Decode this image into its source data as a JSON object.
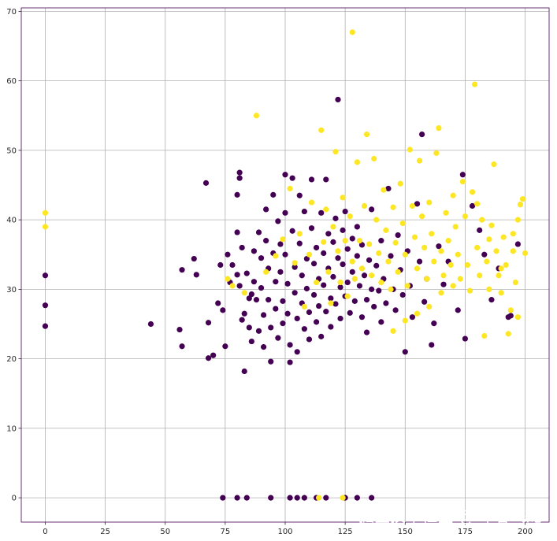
{
  "chart_data": {
    "type": "scatter",
    "title": "",
    "xlabel": "",
    "ylabel": "",
    "xlim": [
      -10,
      210
    ],
    "ylim": [
      -3.5,
      70.5
    ],
    "x_ticks": [
      0,
      25,
      50,
      75,
      100,
      125,
      150,
      175,
      200
    ],
    "y_ticks": [
      0,
      10,
      20,
      30,
      40,
      50,
      60,
      70
    ],
    "grid": true,
    "colors": {
      "class_0": "#440154",
      "class_1": "#fde725",
      "grid": "#b0b0b0",
      "frame": "#440154"
    },
    "series": [
      {
        "values": [
          [
            0,
            32.0
          ],
          [
            0,
            27.7
          ],
          [
            0,
            24.7
          ],
          [
            44,
            25.0
          ],
          [
            56,
            24.2
          ],
          [
            57,
            21.8
          ],
          [
            57,
            32.8
          ],
          [
            62,
            34.4
          ],
          [
            63,
            32.1
          ],
          [
            67,
            45.3
          ],
          [
            68,
            25.2
          ],
          [
            68,
            20.1
          ],
          [
            70,
            20.5
          ],
          [
            72,
            28.0
          ],
          [
            73,
            33.5
          ],
          [
            74,
            27.0
          ],
          [
            75,
            21.8
          ],
          [
            76,
            35.0
          ],
          [
            77,
            31.0
          ],
          [
            78,
            33.5
          ],
          [
            80,
            43.6
          ],
          [
            80,
            38.2
          ],
          [
            80,
            32.1
          ],
          [
            81,
            46.8
          ],
          [
            81,
            46.0
          ],
          [
            81,
            30.5
          ],
          [
            82,
            36.0
          ],
          [
            82,
            25.6
          ],
          [
            83,
            26.5
          ],
          [
            83,
            18.2
          ],
          [
            84,
            32.3
          ],
          [
            85,
            28.7
          ],
          [
            85,
            24.5
          ],
          [
            86,
            29.3
          ],
          [
            86,
            22.5
          ],
          [
            87,
            35.5
          ],
          [
            87,
            31.1
          ],
          [
            88,
            28.5
          ],
          [
            89,
            38.2
          ],
          [
            89,
            24.0
          ],
          [
            90,
            34.5
          ],
          [
            90,
            30.2
          ],
          [
            91,
            26.3
          ],
          [
            91,
            21.7
          ],
          [
            92,
            41.5
          ],
          [
            92,
            37.0
          ],
          [
            93,
            33.0
          ],
          [
            93,
            28.5
          ],
          [
            94,
            24.5
          ],
          [
            94,
            19.6
          ],
          [
            95,
            43.6
          ],
          [
            95,
            35.2
          ],
          [
            96,
            31.1
          ],
          [
            96,
            27.2
          ],
          [
            97,
            39.8
          ],
          [
            97,
            23.0
          ],
          [
            98,
            36.5
          ],
          [
            98,
            32.5
          ],
          [
            99,
            28.3
          ],
          [
            99,
            25.1
          ],
          [
            100,
            46.5
          ],
          [
            100,
            41.0
          ],
          [
            100,
            35.0
          ],
          [
            101,
            30.8
          ],
          [
            101,
            26.5
          ],
          [
            102,
            22.0
          ],
          [
            102,
            19.5
          ],
          [
            103,
            46.0
          ],
          [
            103,
            38.4
          ],
          [
            104,
            33.2
          ],
          [
            104,
            29.5
          ],
          [
            105,
            25.8
          ],
          [
            105,
            21.0
          ],
          [
            106,
            43.5
          ],
          [
            106,
            36.6
          ],
          [
            107,
            32.0
          ],
          [
            107,
            28.0
          ],
          [
            108,
            24.3
          ],
          [
            108,
            41.2
          ],
          [
            109,
            34.4
          ],
          [
            109,
            30.1
          ],
          [
            110,
            26.7
          ],
          [
            110,
            22.8
          ],
          [
            111,
            38.8
          ],
          [
            111,
            45.8
          ],
          [
            112,
            33.7
          ],
          [
            112,
            29.2
          ],
          [
            113,
            25.3
          ],
          [
            113,
            36.0
          ],
          [
            114,
            31.5
          ],
          [
            114,
            27.6
          ],
          [
            115,
            23.2
          ],
          [
            115,
            41.0
          ],
          [
            116,
            35.2
          ],
          [
            116,
            30.6
          ],
          [
            117,
            26.8
          ],
          [
            117,
            45.8
          ],
          [
            118,
            38.0
          ],
          [
            118,
            33.0
          ],
          [
            119,
            28.7
          ],
          [
            119,
            24.6
          ],
          [
            120,
            36.8
          ],
          [
            120,
            31.8
          ],
          [
            121,
            27.9
          ],
          [
            121,
            40.2
          ],
          [
            122,
            57.3
          ],
          [
            122,
            34.5
          ],
          [
            123,
            30.3
          ],
          [
            123,
            25.8
          ],
          [
            124,
            38.5
          ],
          [
            124,
            33.6
          ],
          [
            125,
            29.0
          ],
          [
            125,
            41.2
          ],
          [
            126,
            35.8
          ],
          [
            126,
            31.0
          ],
          [
            127,
            26.6
          ],
          [
            128,
            37.3
          ],
          [
            128,
            32.5
          ],
          [
            129,
            28.3
          ],
          [
            130,
            34.8
          ],
          [
            130,
            39.0
          ],
          [
            131,
            30.5
          ],
          [
            132,
            26.0
          ],
          [
            132,
            36.4
          ],
          [
            133,
            32.0
          ],
          [
            134,
            28.5
          ],
          [
            134,
            23.8
          ],
          [
            135,
            34.2
          ],
          [
            136,
            30.0
          ],
          [
            136,
            41.5
          ],
          [
            137,
            27.5
          ],
          [
            138,
            33.4
          ],
          [
            139,
            29.8
          ],
          [
            140,
            25.3
          ],
          [
            140,
            37.0
          ],
          [
            141,
            31.5
          ],
          [
            142,
            28.0
          ],
          [
            143,
            44.5
          ],
          [
            144,
            34.8
          ],
          [
            145,
            30.0
          ],
          [
            146,
            27.0
          ],
          [
            147,
            37.8
          ],
          [
            148,
            32.8
          ],
          [
            149,
            29.2
          ],
          [
            150,
            21.0
          ],
          [
            151,
            35.5
          ],
          [
            152,
            30.5
          ],
          [
            153,
            26.0
          ],
          [
            155,
            42.3
          ],
          [
            156,
            34.0
          ],
          [
            157,
            52.3
          ],
          [
            158,
            28.2
          ],
          [
            159,
            31.5
          ],
          [
            161,
            22.0
          ],
          [
            162,
            25.1
          ],
          [
            164,
            36.2
          ],
          [
            166,
            30.7
          ],
          [
            168,
            34.0
          ],
          [
            172,
            27.0
          ],
          [
            174,
            46.5
          ],
          [
            175,
            22.9
          ],
          [
            178,
            42.0
          ],
          [
            181,
            38.5
          ],
          [
            183,
            35.0
          ],
          [
            186,
            28.5
          ],
          [
            189,
            33.0
          ],
          [
            193,
            26.0
          ],
          [
            194,
            26.2
          ],
          [
            197,
            36.5
          ],
          [
            74,
            0
          ],
          [
            80,
            0
          ],
          [
            84,
            0
          ],
          [
            94,
            0
          ],
          [
            102,
            0
          ],
          [
            105,
            0
          ],
          [
            108,
            0
          ],
          [
            113,
            0
          ],
          [
            117,
            0
          ],
          [
            125,
            0
          ],
          [
            130,
            0
          ],
          [
            136,
            0
          ]
        ]
      },
      {
        "values": [
          [
            0,
            41.0
          ],
          [
            0,
            39.0
          ],
          [
            76,
            31.5
          ],
          [
            78,
            30.5
          ],
          [
            83,
            29.5
          ],
          [
            88,
            55.0
          ],
          [
            92,
            32.5
          ],
          [
            96,
            34.8
          ],
          [
            99,
            37.2
          ],
          [
            102,
            44.5
          ],
          [
            104,
            33.8
          ],
          [
            106,
            38.0
          ],
          [
            108,
            27.5
          ],
          [
            110,
            35.0
          ],
          [
            111,
            42.5
          ],
          [
            113,
            31.0
          ],
          [
            115,
            52.9
          ],
          [
            116,
            36.8
          ],
          [
            117,
            41.5
          ],
          [
            118,
            32.5
          ],
          [
            119,
            28.0
          ],
          [
            120,
            39.0
          ],
          [
            121,
            49.8
          ],
          [
            122,
            35.5
          ],
          [
            123,
            31.0
          ],
          [
            124,
            43.2
          ],
          [
            125,
            37.0
          ],
          [
            126,
            29.0
          ],
          [
            127,
            40.5
          ],
          [
            128,
            67.0
          ],
          [
            128,
            34.0
          ],
          [
            129,
            31.5
          ],
          [
            130,
            48.3
          ],
          [
            131,
            37.0
          ],
          [
            132,
            33.0
          ],
          [
            133,
            42.0
          ],
          [
            134,
            52.3
          ],
          [
            135,
            36.5
          ],
          [
            136,
            32.0
          ],
          [
            137,
            48.8
          ],
          [
            138,
            40.0
          ],
          [
            139,
            35.2
          ],
          [
            140,
            31.0
          ],
          [
            141,
            44.3
          ],
          [
            142,
            38.5
          ],
          [
            143,
            34.0
          ],
          [
            144,
            30.0
          ],
          [
            145,
            41.8
          ],
          [
            146,
            36.7
          ],
          [
            147,
            32.5
          ],
          [
            148,
            45.2
          ],
          [
            149,
            39.5
          ],
          [
            150,
            35.0
          ],
          [
            151,
            30.5
          ],
          [
            152,
            50.1
          ],
          [
            153,
            42.0
          ],
          [
            154,
            37.5
          ],
          [
            155,
            33.0
          ],
          [
            156,
            48.5
          ],
          [
            157,
            40.5
          ],
          [
            158,
            36.0
          ],
          [
            159,
            31.5
          ],
          [
            160,
            42.5
          ],
          [
            161,
            38.0
          ],
          [
            162,
            34.0
          ],
          [
            163,
            49.6
          ],
          [
            164,
            53.2
          ],
          [
            165,
            35.5
          ],
          [
            166,
            32.0
          ],
          [
            167,
            41.0
          ],
          [
            168,
            37.0
          ],
          [
            169,
            33.5
          ],
          [
            170,
            43.5
          ],
          [
            171,
            39.0
          ],
          [
            172,
            35.0
          ],
          [
            173,
            31.5
          ],
          [
            174,
            45.5
          ],
          [
            175,
            40.5
          ],
          [
            176,
            33.5
          ],
          [
            177,
            29.8
          ],
          [
            178,
            44.0
          ],
          [
            179,
            59.5
          ],
          [
            180,
            36.0
          ],
          [
            181,
            32.0
          ],
          [
            182,
            40.0
          ],
          [
            183,
            23.3
          ],
          [
            184,
            34.0
          ],
          [
            185,
            30.0
          ],
          [
            186,
            39.2
          ],
          [
            187,
            48.0
          ],
          [
            188,
            35.5
          ],
          [
            189,
            32.0
          ],
          [
            190,
            29.5
          ],
          [
            191,
            37.5
          ],
          [
            192,
            33.5
          ],
          [
            193,
            23.6
          ],
          [
            194,
            27.0
          ],
          [
            195,
            38.0
          ],
          [
            196,
            31.0
          ],
          [
            197,
            40.0
          ],
          [
            197,
            26.0
          ],
          [
            198,
            42.2
          ],
          [
            199,
            43.0
          ],
          [
            200,
            35.2
          ],
          [
            195,
            35.5
          ],
          [
            190,
            33.0
          ],
          [
            185,
            37.2
          ],
          [
            180,
            42.3
          ],
          [
            170,
            30.5
          ],
          [
            165,
            29.5
          ],
          [
            160,
            27.5
          ],
          [
            155,
            26.5
          ],
          [
            150,
            25.5
          ],
          [
            145,
            24.0
          ],
          [
            114,
            0
          ],
          [
            124,
            0
          ]
        ]
      }
    ]
  },
  "watermark": "掘金技术社区 @ 布客飞龙"
}
